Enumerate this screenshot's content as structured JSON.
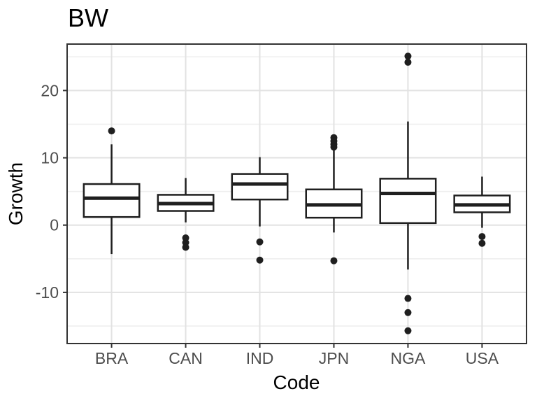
{
  "chart_data": {
    "type": "box",
    "title": "BW",
    "xlabel": "Code",
    "ylabel": "Growth",
    "categories": [
      "BRA",
      "CAN",
      "IND",
      "JPN",
      "NGA",
      "USA"
    ],
    "ylim": [
      -17.6,
      26.9
    ],
    "y_major_ticks": [
      -10,
      0,
      10,
      20
    ],
    "y_minor_gridlines": [
      -15,
      -5,
      5,
      15,
      25
    ],
    "grid": true,
    "legend_position": "none",
    "series": [
      {
        "category": "BRA",
        "whisker_low": -4.3,
        "q1": 1.2,
        "median": 4.0,
        "q3": 6.1,
        "whisker_high": 12.0,
        "outliers": [
          14.0
        ]
      },
      {
        "category": "CAN",
        "whisker_low": 0.4,
        "q1": 2.1,
        "median": 3.2,
        "q3": 4.5,
        "whisker_high": 7.0,
        "outliers": [
          -1.9,
          -2.6,
          -3.3
        ]
      },
      {
        "category": "IND",
        "whisker_low": -0.2,
        "q1": 3.8,
        "median": 6.1,
        "q3": 7.6,
        "whisker_high": 10.1,
        "outliers": [
          -2.5,
          -5.2
        ]
      },
      {
        "category": "JPN",
        "whisker_low": -1.1,
        "q1": 1.1,
        "median": 3.0,
        "q3": 5.3,
        "whisker_high": 11.3,
        "outliers": [
          13.0,
          12.5,
          12.0,
          11.6,
          -5.3
        ]
      },
      {
        "category": "NGA",
        "whisker_low": -6.6,
        "q1": 0.3,
        "median": 4.7,
        "q3": 6.9,
        "whisker_high": 15.4,
        "outliers": [
          25.1,
          24.2,
          -10.9,
          -13.0,
          -15.7
        ]
      },
      {
        "category": "USA",
        "whisker_low": -0.4,
        "q1": 1.9,
        "median": 3.0,
        "q3": 4.4,
        "whisker_high": 7.2,
        "outliers": [
          -1.7,
          -2.7
        ]
      }
    ],
    "colors": {
      "box_stroke": "#1f1f1f",
      "box_fill": "#ffffff",
      "point": "#1f1f1f",
      "grid_major": "#e2e2e2",
      "grid_minor": "#eeeeee",
      "panel_border": "#333333",
      "tick_mark": "#333333",
      "tick_label": "#4d4d4d",
      "text": "#000000",
      "background": "#ffffff"
    }
  }
}
